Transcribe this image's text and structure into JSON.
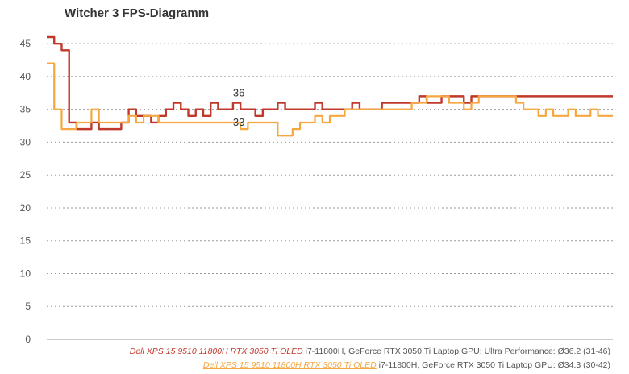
{
  "chart_data": {
    "type": "line",
    "title": "Witcher 3 FPS-Diagramm",
    "xlabel": "",
    "ylabel": "",
    "ylim": [
      0,
      46
    ],
    "yticks": [
      0,
      5,
      10,
      15,
      20,
      25,
      30,
      35,
      40,
      45
    ],
    "grid": true,
    "legend_position": "bottom-right",
    "series": [
      {
        "name": "Dell XPS 15 9510 11800H RTX 3050 Ti OLED",
        "detail": "i7-11800H, GeForce RTX 3050 Ti Laptop GPU; Ultra Performance: Ø36.2 (31-46)",
        "color": "#c0392b",
        "label": "36",
        "label_index": 25,
        "values": [
          46,
          45,
          44,
          33,
          32,
          32,
          33,
          32,
          32,
          32,
          33,
          35,
          34,
          34,
          33,
          34,
          35,
          36,
          35,
          34,
          35,
          34,
          36,
          35,
          35,
          36,
          35,
          35,
          34,
          35,
          35,
          36,
          35,
          35,
          35,
          35,
          36,
          35,
          35,
          35,
          35,
          36,
          35,
          35,
          35,
          36,
          36,
          36,
          36,
          36,
          37,
          36,
          36,
          37,
          37,
          37,
          36,
          37,
          37,
          37,
          37,
          37,
          37,
          37,
          37,
          37,
          37,
          37,
          37,
          37,
          37,
          37,
          37,
          37,
          37,
          37,
          37
        ]
      },
      {
        "name": "Dell XPS 15 9510 11800H RTX 3050 Ti OLED",
        "detail": "i7-11800H, GeForce RTX 3050 Ti Laptop GPU: Ø34.3 (30-42)",
        "color": "#f5a742",
        "label": "33",
        "label_index": 25,
        "values": [
          42,
          35,
          32,
          32,
          33,
          33,
          35,
          33,
          33,
          33,
          33,
          34,
          33,
          34,
          34,
          33,
          33,
          33,
          33,
          33,
          33,
          33,
          33,
          33,
          33,
          33,
          32,
          33,
          33,
          33,
          33,
          31,
          31,
          32,
          33,
          33,
          34,
          33,
          34,
          34,
          35,
          35,
          35,
          35,
          35,
          35,
          35,
          35,
          35,
          36,
          36,
          37,
          37,
          37,
          36,
          36,
          35,
          36,
          37,
          37,
          37,
          37,
          37,
          36,
          35,
          35,
          34,
          35,
          34,
          34,
          35,
          34,
          34,
          35,
          34,
          34,
          34
        ]
      }
    ]
  },
  "legend": {
    "series_1": {
      "name": "Dell XPS 15 9510 11800H RTX 3050 Ti OLED",
      "detail": " i7-11800H, GeForce RTX 3050 Ti Laptop GPU; Ultra Performance: Ø36.2 (31-46)"
    },
    "series_2": {
      "name": "Dell XPS 15 9510 11800H RTX 3050 Ti OLED",
      "detail": " i7-11800H, GeForce RTX 3050 Ti Laptop GPU: Ø34.3 (30-42)"
    }
  },
  "colors": {
    "series_1": "#c0392b",
    "series_2": "#f5a742",
    "grid": "#999999",
    "axis_text": "#555555"
  }
}
